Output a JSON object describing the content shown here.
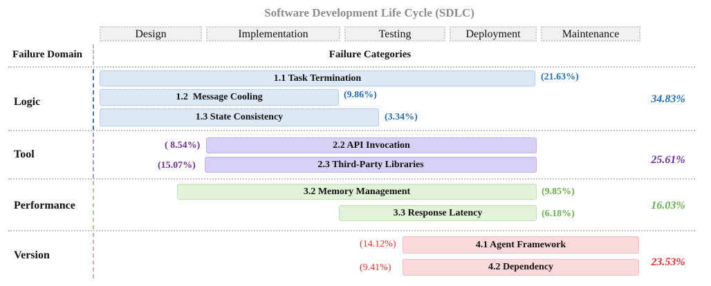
{
  "title": "Software Development Life Cycle (SDLC)",
  "stages": [
    "Design",
    "Implementation",
    "Testing",
    "Deployment",
    "Maintenance"
  ],
  "headers": {
    "domain": "Failure Domain",
    "categories": "Failure Categories"
  },
  "colors": {
    "logic": "#1f6fc4",
    "tool": "#7030a0",
    "performance": "#6ab04c",
    "version": "#ff2a2a"
  },
  "domains": [
    {
      "name": "Logic",
      "total": "34.83%",
      "categories": [
        {
          "label": "1.1 Task Termination",
          "pct": "(21.63%)"
        },
        {
          "label": "1.2  Message Cooling",
          "pct": "(9.86%)"
        },
        {
          "label": "1.3 State Consistency",
          "pct": "(3.34%)"
        }
      ]
    },
    {
      "name": "Tool",
      "total": "25.61%",
      "categories": [
        {
          "label": "2.2 API Invocation",
          "pct": "( 8.54%)"
        },
        {
          "label": "2.3 Third-Party Libraries",
          "pct": "(15.07%)"
        }
      ]
    },
    {
      "name": "Performance",
      "total": "16.03%",
      "categories": [
        {
          "label": "3.2 Memory Management",
          "pct": "(9.85%)"
        },
        {
          "label": "3.3 Response Latency",
          "pct": "(6.18%)"
        }
      ]
    },
    {
      "name": "Version",
      "total": "23.53%",
      "categories": [
        {
          "label": "4.1 Agent Framework",
          "pct": "(14.12%)"
        },
        {
          "label": "4.2 Dependency",
          "pct": "(9.41%)"
        }
      ]
    }
  ]
}
